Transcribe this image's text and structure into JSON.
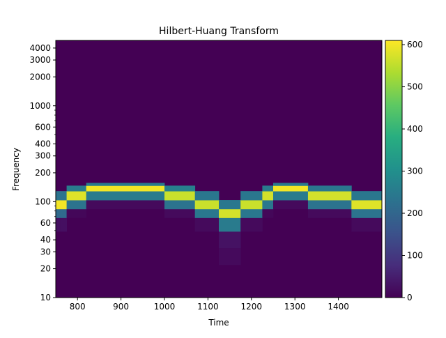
{
  "chart_data": {
    "type": "heatmap",
    "title": "Hilbert-Huang Transform",
    "xlabel": "Time",
    "ylabel": "Frequency",
    "x_range": [
      750,
      1500
    ],
    "y_range": [
      10,
      4800
    ],
    "y_scale": "log",
    "x_ticks": [
      800,
      900,
      1000,
      1100,
      1200,
      1300,
      1400
    ],
    "y_ticks": [
      10,
      20,
      30,
      40,
      60,
      100,
      200,
      300,
      400,
      600,
      1000,
      2000,
      3000,
      4000
    ],
    "colormap": "viridis",
    "colorbar": {
      "range": [
        0,
        610
      ],
      "ticks": [
        0,
        100,
        200,
        300,
        400,
        500,
        600
      ]
    },
    "background_value": 0,
    "freq_bin_edges": [
      10,
      15,
      22,
      33,
      49,
      68,
      84,
      104,
      129,
      147,
      157,
      4800
    ],
    "time_columns": [
      {
        "t0": 750,
        "t1": 760,
        "values": [
          0,
          0,
          0,
          0,
          25,
          210,
          600,
          230,
          0,
          0,
          0
        ]
      },
      {
        "t0": 760,
        "t1": 775,
        "values": [
          0,
          0,
          0,
          0,
          25,
          210,
          600,
          230,
          0,
          0,
          0
        ]
      },
      {
        "t0": 775,
        "t1": 820,
        "values": [
          0,
          0,
          0,
          0,
          0,
          10,
          230,
          580,
          250,
          0,
          0
        ]
      },
      {
        "t0": 820,
        "t1": 1000,
        "values": [
          0,
          0,
          0,
          0,
          0,
          0,
          15,
          250,
          600,
          250,
          0
        ]
      },
      {
        "t0": 1000,
        "t1": 1070,
        "values": [
          0,
          0,
          0,
          0,
          0,
          15,
          230,
          560,
          260,
          0,
          0
        ]
      },
      {
        "t0": 1070,
        "t1": 1125,
        "values": [
          0,
          0,
          0,
          0,
          15,
          240,
          560,
          240,
          0,
          0,
          0
        ]
      },
      {
        "t0": 1125,
        "t1": 1175,
        "values": [
          0,
          0,
          15,
          30,
          250,
          570,
          240,
          0,
          0,
          0,
          0
        ]
      },
      {
        "t0": 1175,
        "t1": 1225,
        "values": [
          0,
          0,
          0,
          0,
          15,
          240,
          560,
          240,
          0,
          0,
          0
        ]
      },
      {
        "t0": 1225,
        "t1": 1250,
        "values": [
          0,
          0,
          0,
          0,
          0,
          10,
          240,
          570,
          250,
          0,
          0
        ]
      },
      {
        "t0": 1250,
        "t1": 1330,
        "values": [
          0,
          0,
          0,
          0,
          0,
          0,
          15,
          250,
          600,
          250,
          0
        ]
      },
      {
        "t0": 1330,
        "t1": 1430,
        "values": [
          0,
          0,
          0,
          0,
          0,
          15,
          230,
          570,
          240,
          0,
          0
        ]
      },
      {
        "t0": 1430,
        "t1": 1500,
        "values": [
          0,
          0,
          0,
          0,
          15,
          230,
          580,
          240,
          0,
          0,
          0
        ]
      }
    ]
  }
}
